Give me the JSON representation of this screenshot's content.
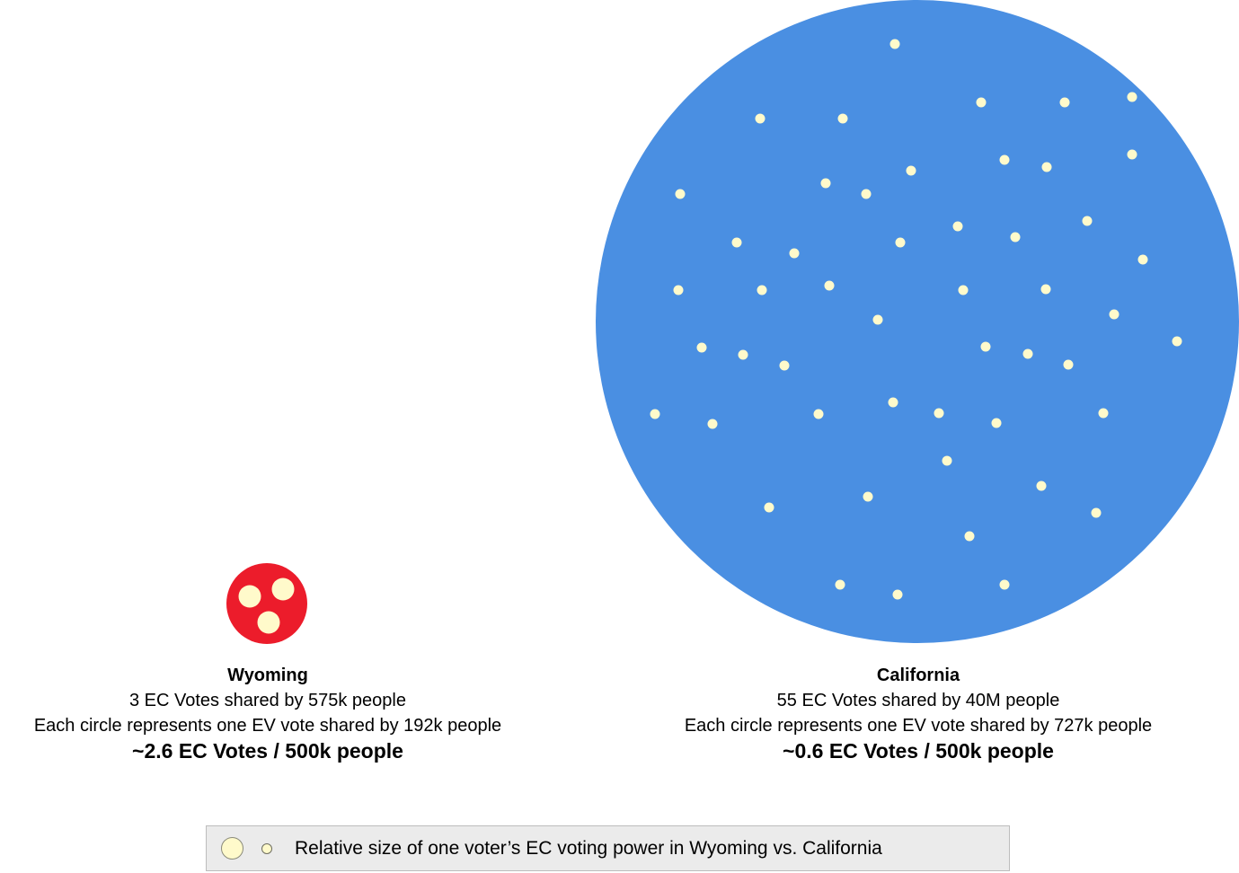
{
  "colors": {
    "wyoming": "#ec1c2b",
    "california": "#4a8fe2",
    "vote_dot": "#fffacb",
    "legend_bg": "#ebebeb"
  },
  "wyoming": {
    "name": "Wyoming",
    "line1": "3 EC Votes shared by 575k people",
    "line2": "Each circle represents one EV vote shared by 192k people",
    "ratio": "~2.6 EC Votes / 500k people",
    "ec_votes": 3
  },
  "california": {
    "name": "California",
    "line1": "55 EC Votes shared by 40M people",
    "line2": "Each circle represents one EV vote shared by 727k people",
    "ratio": "~0.6 EC Votes / 500k people",
    "ec_votes": 55
  },
  "legend": {
    "text": "Relative size of one voter’s EC voting power in Wyoming vs. California"
  }
}
